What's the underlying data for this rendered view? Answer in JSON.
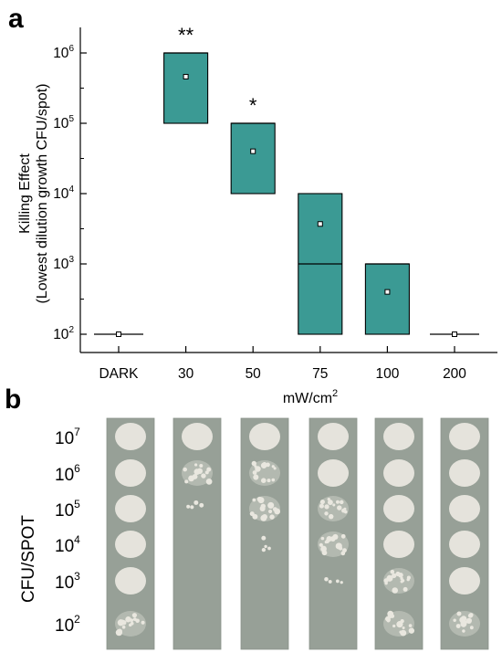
{
  "panel_a": {
    "letter": "a"
  },
  "panel_b": {
    "letter": "b",
    "row_axis_label": "CFU/SPOT",
    "row_labels": [
      {
        "base": "10",
        "exp": "7"
      },
      {
        "base": "10",
        "exp": "6"
      },
      {
        "base": "10",
        "exp": "5"
      },
      {
        "base": "10",
        "exp": "4"
      },
      {
        "base": "10",
        "exp": "3"
      },
      {
        "base": "10",
        "exp": "2"
      }
    ],
    "colors": {
      "agar": "#97a097",
      "colony": "#e9e7df"
    },
    "strips": [
      {
        "condition": "DARK",
        "growth": [
          "full",
          "full",
          "full",
          "full",
          "full",
          "spotty"
        ]
      },
      {
        "condition": "30",
        "growth": [
          "full",
          "spotty",
          "few",
          "none",
          "none",
          "none"
        ]
      },
      {
        "condition": "50",
        "growth": [
          "full",
          "spotty",
          "spotty",
          "few",
          "none",
          "none"
        ]
      },
      {
        "condition": "75",
        "growth": [
          "full",
          "full",
          "spotty",
          "spotty",
          "few",
          "none"
        ]
      },
      {
        "condition": "100",
        "growth": [
          "full",
          "full",
          "full",
          "full",
          "spotty",
          "spotty"
        ]
      },
      {
        "condition": "200",
        "growth": [
          "full",
          "full",
          "full",
          "full",
          "full",
          "spotty"
        ]
      }
    ]
  },
  "chart_data": {
    "type": "box",
    "categories": [
      "DARK",
      "30",
      "50",
      "75",
      "100",
      "200"
    ],
    "xlabel": "mW/cm",
    "xlabel_sup": "2",
    "ylabel_line1": "Killing Effect",
    "ylabel_line2": "(Lowest dilution growth CFU/spot)",
    "yscale": "log",
    "ylim": [
      50,
      3000000
    ],
    "y_ticks": [
      {
        "value": 100,
        "base": "10",
        "exp": "2"
      },
      {
        "value": 1000,
        "base": "10",
        "exp": "3"
      },
      {
        "value": 10000,
        "base": "10",
        "exp": "4"
      },
      {
        "value": 100000,
        "base": "10",
        "exp": "5"
      },
      {
        "value": 1000000,
        "base": "10",
        "exp": "6"
      }
    ],
    "box_color": "#3b9a94",
    "boxes": [
      {
        "category": "DARK",
        "low": 100,
        "high": 100,
        "median": 100,
        "mean": 100,
        "significance": ""
      },
      {
        "category": "30",
        "low": 100000,
        "high": 1000000,
        "median": 1000000,
        "mean": 460000,
        "significance": "**"
      },
      {
        "category": "50",
        "low": 10000,
        "high": 100000,
        "median": 100000,
        "mean": 40000,
        "significance": "*"
      },
      {
        "category": "75",
        "low": 100,
        "high": 10000,
        "median": 1000,
        "mean": 3700,
        "significance": ""
      },
      {
        "category": "100",
        "low": 100,
        "high": 1000,
        "median": 1000,
        "mean": 400,
        "significance": ""
      },
      {
        "category": "200",
        "low": 100,
        "high": 100,
        "median": 100,
        "mean": 100,
        "significance": ""
      }
    ]
  }
}
